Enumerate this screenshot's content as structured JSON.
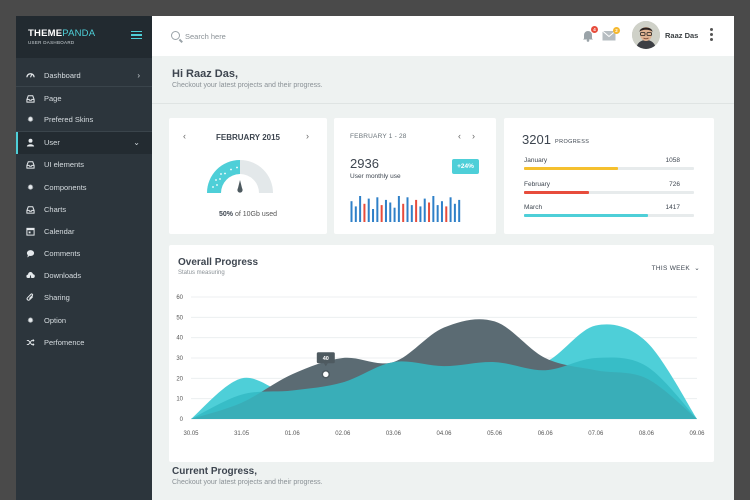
{
  "brand": {
    "name_bold": "THEME",
    "name_light": "PANDA",
    "subtitle": "USER DASHBOARD"
  },
  "sidebar": {
    "items": [
      {
        "label": "Dashboard",
        "icon": "gauge-icon",
        "chevron": "›"
      },
      {
        "label": "Page",
        "icon": "inbox-icon"
      },
      {
        "label": "Prefered Skins",
        "icon": "gear-icon"
      },
      {
        "label": "User",
        "icon": "user-icon",
        "chevron": "⌄",
        "active": true
      },
      {
        "label": "UI elements",
        "icon": "inbox-icon"
      },
      {
        "label": "Components",
        "icon": "gear-icon"
      },
      {
        "label": "Charts",
        "icon": "inbox-icon"
      },
      {
        "label": "Calendar",
        "icon": "calendar-icon"
      },
      {
        "label": "Comments",
        "icon": "comment-icon"
      },
      {
        "label": "Downloads",
        "icon": "cloud-download-icon"
      },
      {
        "label": "Sharing",
        "icon": "paperclip-icon"
      },
      {
        "label": "Option",
        "icon": "gear-icon"
      },
      {
        "label": "Perfomence",
        "icon": "shuffle-icon"
      }
    ]
  },
  "topbar": {
    "search_placeholder": "Search here",
    "notifications_count": "4",
    "messages_count": "2",
    "user_name": "Raaz Das",
    "colors": {
      "notif_badge": "#e74c3c",
      "mail_badge": "#f5b82e"
    }
  },
  "greeting": {
    "title": "Hi Raaz Das,",
    "subtitle": "Checkout your latest projects and their progress."
  },
  "storage_card": {
    "month": "FEBRUARY 2015",
    "used_prefix": "50%",
    "used_suffix": "of 10Gb used",
    "percent": 50
  },
  "users_card": {
    "range": "FEBRUARY 1 - 28",
    "value": "2936",
    "label": "User monthly use",
    "change": "+24%"
  },
  "progress_card": {
    "total": "3201",
    "label": "PROGRESS",
    "items": [
      {
        "name": "January",
        "value": "1058",
        "fraction": 0.55,
        "color": "#f5c02e"
      },
      {
        "name": "February",
        "value": "726",
        "fraction": 0.38,
        "color": "#e74c3c"
      },
      {
        "name": "March",
        "value": "1417",
        "fraction": 0.73,
        "color": "#4ecfd8"
      }
    ]
  },
  "overall": {
    "title": "Overall Progress",
    "subtitle": "Status measuring",
    "filter": "THIS WEEK"
  },
  "current": {
    "title": "Current Progress,",
    "subtitle": "Checkout your latest projects and their progress."
  },
  "chart_data": [
    {
      "type": "area",
      "title": "Overall Progress",
      "x": [
        "30.05",
        "31.05",
        "01.06",
        "02.06",
        "03.06",
        "04.06",
        "05.06",
        "06.06",
        "07.06",
        "08.06",
        "09.06"
      ],
      "yticks": [
        0,
        10,
        20,
        30,
        40,
        50,
        60
      ],
      "ylim": [
        0,
        60
      ],
      "grid": true,
      "series": [
        {
          "color": "#4ecfd8",
          "values": [
            0,
            20,
            12,
            18,
            18,
            24,
            26,
            28,
            46,
            38,
            0
          ]
        },
        {
          "color": "#5b6b73",
          "values": [
            0,
            8,
            22,
            30,
            28,
            45,
            48,
            30,
            24,
            20,
            0
          ]
        },
        {
          "color": "#34bac4",
          "values": [
            0,
            12,
            14,
            18,
            28,
            26,
            28,
            24,
            30,
            26,
            0
          ]
        }
      ],
      "annotation": {
        "x": "02.06",
        "value": 40,
        "label": "40"
      }
    },
    {
      "type": "bar",
      "title": "User monthly use",
      "values": [
        16,
        12,
        20,
        14,
        18,
        10,
        19,
        13,
        17,
        15,
        11,
        20,
        14,
        19,
        13,
        17,
        12,
        18,
        15,
        20,
        13,
        16,
        12,
        19,
        14,
        17
      ],
      "colors": [
        "#2f80c8",
        "#2f80c8",
        "#2f80c8",
        "#e74c3c",
        "#2f80c8",
        "#2f80c8",
        "#2f80c8",
        "#e74c3c",
        "#2f80c8",
        "#2f80c8",
        "#2f80c8",
        "#2f80c8",
        "#e74c3c",
        "#2f80c8",
        "#2f80c8",
        "#e74c3c",
        "#2f80c8",
        "#2f80c8",
        "#e74c3c",
        "#2f80c8",
        "#2f80c8",
        "#2f80c8",
        "#e74c3c",
        "#2f80c8",
        "#2f80c8",
        "#2f80c8"
      ]
    }
  ]
}
